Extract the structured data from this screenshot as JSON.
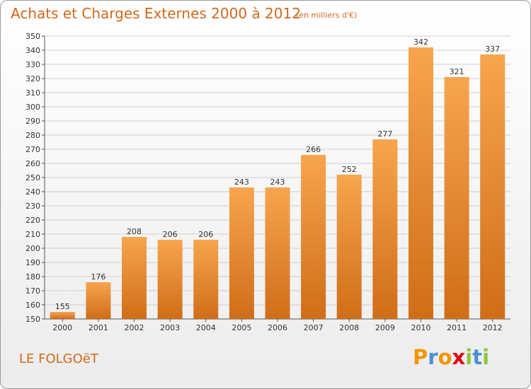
{
  "header": {
    "title": "Achats et Charges Externes 2000 à 2012",
    "unit_note": "(en milliers d'€)"
  },
  "footer": {
    "commune": "LE FOLGOëT",
    "logo": {
      "text": "Proxiti",
      "letters": [
        {
          "ch": "P",
          "color": "#f29400"
        },
        {
          "ch": "r",
          "color": "#4a90d9"
        },
        {
          "ch": "o",
          "color": "#f29400"
        },
        {
          "ch": "x",
          "color": "#e2001a"
        },
        {
          "ch": "i",
          "color": "#8cc63f"
        },
        {
          "ch": "t",
          "color": "#4a90d9"
        },
        {
          "ch": "i",
          "color": "#8cc63f"
        }
      ]
    }
  },
  "colors": {
    "bar_top": "#f7a54e",
    "bar_bottom": "#d06d18",
    "grid": "#cfcfcf",
    "accent_text": "#d2691e"
  },
  "chart_data": {
    "type": "bar",
    "title": "Achats et Charges Externes 2000 à 2012",
    "subtitle": "(en milliers d'€)",
    "xlabel": "",
    "ylabel": "",
    "categories": [
      "2000",
      "2001",
      "2002",
      "2003",
      "2004",
      "2005",
      "2006",
      "2007",
      "2008",
      "2009",
      "2010",
      "2011",
      "2012"
    ],
    "values": [
      155,
      176,
      208,
      206,
      206,
      243,
      243,
      266,
      252,
      277,
      342,
      321,
      337
    ],
    "ylim": [
      150,
      350
    ],
    "ytick_step": 10,
    "grid": true,
    "legend": "none"
  }
}
